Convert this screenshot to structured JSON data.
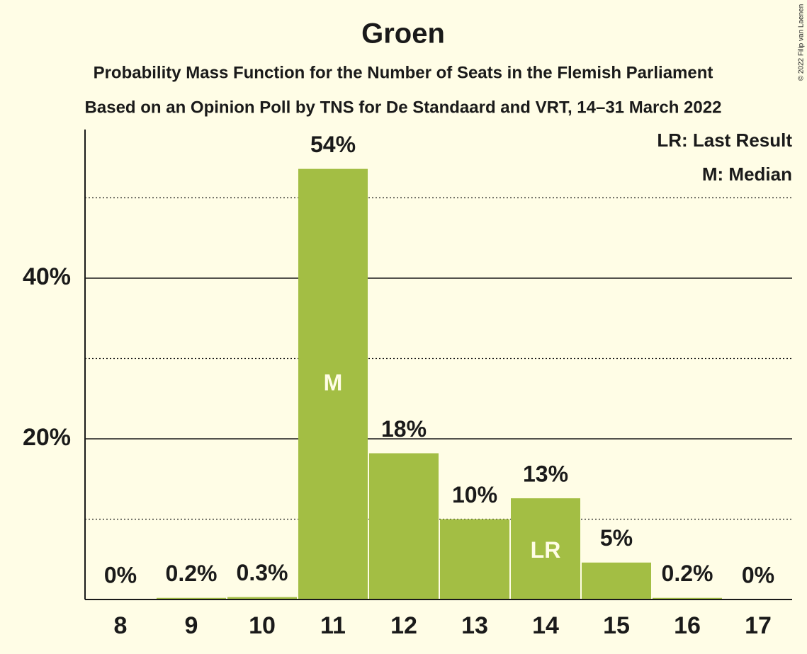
{
  "chart_data": {
    "type": "bar",
    "title": "Groen",
    "subtitle": [
      "Probability Mass Function for the Number of Seats in the Flemish Parliament",
      "Based on an Opinion Poll by TNS for De Standaard and VRT, 14–31 March 2022"
    ],
    "categories": [
      "8",
      "9",
      "10",
      "11",
      "12",
      "13",
      "14",
      "15",
      "16",
      "17"
    ],
    "values": [
      0,
      0.2,
      0.3,
      53.6,
      18.2,
      10.0,
      12.6,
      4.6,
      0.2,
      0
    ],
    "value_labels": [
      "0%",
      "0.2%",
      "0.3%",
      "54%",
      "18%",
      "10%",
      "13%",
      "5%",
      "0.2%",
      "0%"
    ],
    "color": "#a3be44",
    "ylim": [
      0,
      58.5
    ],
    "yticks": [
      {
        "value": 20,
        "label": "20%"
      },
      {
        "value": 40,
        "label": "40%"
      }
    ],
    "minor_yticks": [
      10,
      30,
      50
    ],
    "grid": true,
    "annotations": [
      {
        "x": "11",
        "text": "M"
      },
      {
        "x": "14",
        "text": "LR"
      }
    ],
    "legend_notes": [
      "LR: Last Result",
      "M: Median"
    ],
    "legend_position": "upper right",
    "copyright": "© 2022 Filip van Laenen"
  }
}
